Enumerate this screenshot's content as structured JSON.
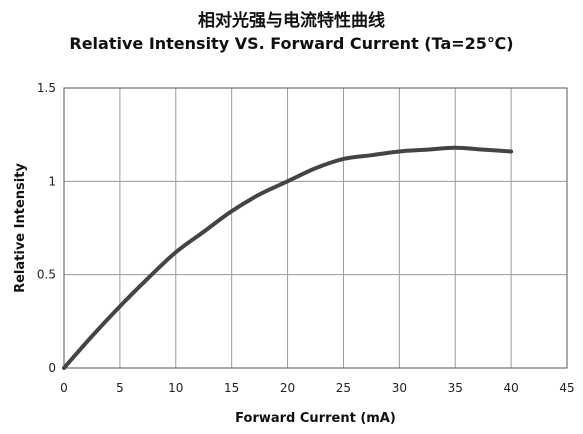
{
  "chart_data": {
    "type": "line",
    "title": "相对光强与电流特性曲线",
    "subtitle": "Relative Intensity VS. Forward Current  (Ta=25℃)",
    "xlabel": "Forward Current (mA)",
    "ylabel": "Relative Intensity",
    "xlim": [
      0,
      45
    ],
    "ylim": [
      0,
      1.5
    ],
    "x_ticks": [
      "0",
      "5",
      "10",
      "15",
      "20",
      "25",
      "30",
      "35",
      "40",
      "45"
    ],
    "y_ticks": [
      "0",
      "0.5",
      "1",
      "1.5"
    ],
    "grid": true,
    "series": [
      {
        "color": "#444444",
        "x": [
          0,
          2.5,
          5,
          7.5,
          10,
          12.5,
          15,
          17.5,
          20,
          22.5,
          25,
          27.5,
          30,
          32.5,
          35,
          37.5,
          40
        ],
        "y": [
          0,
          0.17,
          0.33,
          0.48,
          0.62,
          0.73,
          0.84,
          0.93,
          1.0,
          1.07,
          1.12,
          1.14,
          1.16,
          1.17,
          1.18,
          1.17,
          1.16
        ]
      }
    ]
  }
}
